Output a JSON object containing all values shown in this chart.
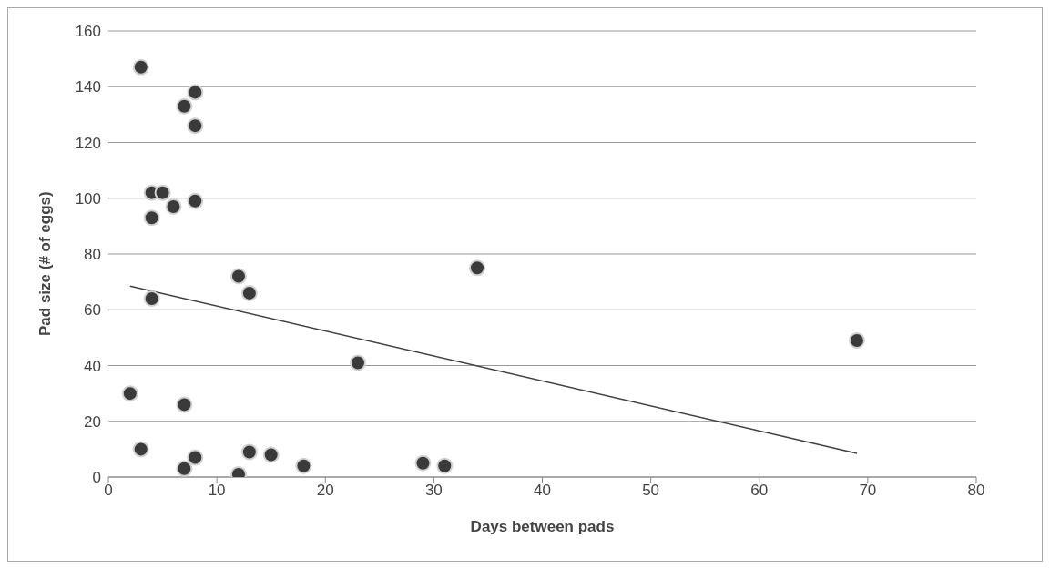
{
  "chart_data": {
    "type": "scatter",
    "xlabel": "Days between pads",
    "ylabel": "Pad size (# of eggs)",
    "xlim": [
      0,
      80
    ],
    "xticks": [
      0,
      10,
      20,
      30,
      40,
      50,
      60,
      70,
      80
    ],
    "ylim": [
      0,
      160
    ],
    "yticks": [
      0,
      20,
      40,
      60,
      80,
      100,
      120,
      140,
      160
    ],
    "grid": "y",
    "legend": false,
    "marker": "circle",
    "series": [
      {
        "color": "#3a3a3a",
        "x": [
          2,
          3,
          3,
          4,
          4,
          5,
          4,
          6,
          7,
          8,
          8,
          8,
          7,
          7,
          8,
          12,
          13,
          12,
          13,
          15,
          18,
          23,
          29,
          31,
          34,
          69
        ],
        "values": [
          30,
          147,
          10,
          93,
          102,
          102,
          64,
          97,
          133,
          138,
          126,
          99,
          26,
          3,
          7,
          72,
          66,
          1,
          9,
          8,
          4,
          41,
          5,
          4,
          75,
          49
        ]
      },
      {
        "type": "line",
        "color": "#404040",
        "marker": "none",
        "x": [
          2,
          69
        ],
        "values": [
          68.5,
          8.5
        ]
      }
    ]
  }
}
